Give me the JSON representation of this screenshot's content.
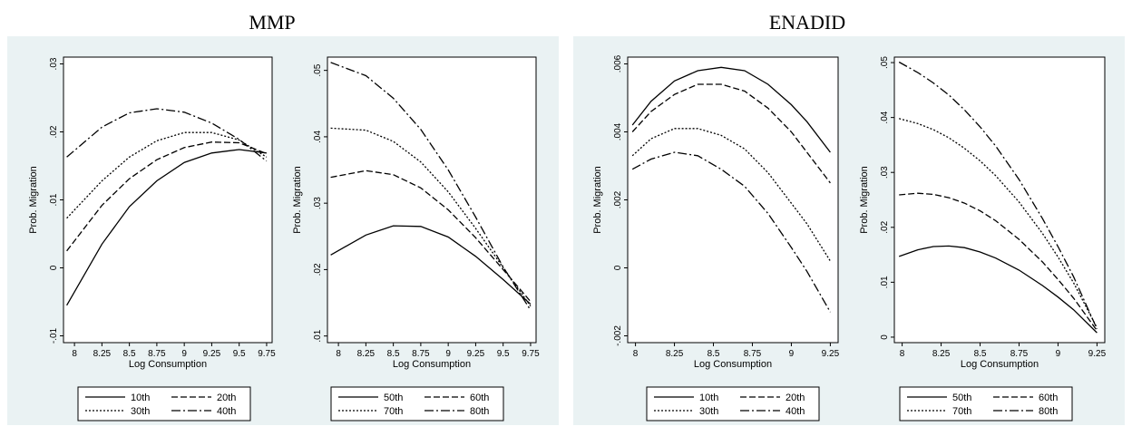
{
  "groups": [
    {
      "title": "MMP"
    },
    {
      "title": "ENADID"
    }
  ],
  "chart_data": [
    {
      "type": "line",
      "group": "MMP",
      "xlabel": "Log Consumption",
      "ylabel": "Prob. Migration",
      "xlim": [
        7.9,
        9.8
      ],
      "ylim": [
        -0.011,
        0.031
      ],
      "xticks": [
        8,
        8.25,
        8.5,
        8.75,
        9,
        9.25,
        9.5,
        9.75
      ],
      "xtick_labels": [
        "8",
        "8.25",
        "8.5",
        "8.75",
        "9",
        "9.25",
        "9.5",
        "9.75"
      ],
      "yticks": [
        -0.01,
        0,
        0.01,
        0.02,
        0.03
      ],
      "ytick_labels": [
        "-.01",
        "0",
        ".01",
        ".02",
        ".03"
      ],
      "legend_placement": "bottom",
      "series": [
        {
          "name": "10th",
          "dash": "solid",
          "x": [
            7.93,
            8.25,
            8.5,
            8.75,
            9.0,
            9.25,
            9.5,
            9.75
          ],
          "y": [
            -0.0055,
            0.0035,
            0.009,
            0.0128,
            0.0155,
            0.0169,
            0.0174,
            0.0169
          ]
        },
        {
          "name": "20th",
          "dash": "dash",
          "x": [
            7.93,
            8.25,
            8.5,
            8.75,
            9.0,
            9.25,
            9.5,
            9.75
          ],
          "y": [
            0.0025,
            0.0092,
            0.0131,
            0.0159,
            0.0177,
            0.0185,
            0.0184,
            0.0168
          ]
        },
        {
          "name": "30th",
          "dash": "dot",
          "x": [
            7.93,
            8.25,
            8.5,
            8.75,
            9.0,
            9.25,
            9.5,
            9.75
          ],
          "y": [
            0.0073,
            0.0128,
            0.0163,
            0.0187,
            0.0199,
            0.0199,
            0.0188,
            0.0163
          ]
        },
        {
          "name": "40th",
          "dash": "longdash",
          "x": [
            7.93,
            8.25,
            8.5,
            8.75,
            9.0,
            9.25,
            9.5,
            9.75
          ],
          "y": [
            0.0163,
            0.0207,
            0.0228,
            0.0234,
            0.0229,
            0.0213,
            0.0189,
            0.0157
          ]
        }
      ]
    },
    {
      "type": "line",
      "group": "MMP",
      "xlabel": "Log Consumption",
      "ylabel": "Prob. Migration",
      "xlim": [
        7.9,
        9.8
      ],
      "ylim": [
        0.009,
        0.052
      ],
      "xticks": [
        8,
        8.25,
        8.5,
        8.75,
        9,
        9.25,
        9.5,
        9.75
      ],
      "xtick_labels": [
        "8",
        "8.25",
        "8.5",
        "8.75",
        "9",
        "9.25",
        "9.5",
        "9.75"
      ],
      "yticks": [
        0.01,
        0.02,
        0.03,
        0.04,
        0.05
      ],
      "ytick_labels": [
        ".01",
        ".02",
        ".03",
        ".04",
        ".05"
      ],
      "legend_placement": "bottom",
      "series": [
        {
          "name": "50th",
          "dash": "solid",
          "x": [
            7.93,
            8.25,
            8.5,
            8.75,
            9.0,
            9.25,
            9.5,
            9.75
          ],
          "y": [
            0.0222,
            0.0252,
            0.0266,
            0.0265,
            0.0249,
            0.022,
            0.0185,
            0.0148
          ]
        },
        {
          "name": "60th",
          "dash": "dash",
          "x": [
            7.93,
            8.25,
            8.5,
            8.75,
            9.0,
            9.25,
            9.5,
            9.75
          ],
          "y": [
            0.0339,
            0.0349,
            0.0343,
            0.0323,
            0.029,
            0.0248,
            0.02,
            0.0152
          ]
        },
        {
          "name": "70th",
          "dash": "dot",
          "x": [
            7.93,
            8.25,
            8.5,
            8.75,
            9.0,
            9.25,
            9.5,
            9.75
          ],
          "y": [
            0.0413,
            0.041,
            0.0393,
            0.0362,
            0.0317,
            0.0262,
            0.0203,
            0.0145
          ]
        },
        {
          "name": "80th",
          "dash": "longdash",
          "x": [
            7.93,
            8.25,
            8.5,
            8.75,
            9.0,
            9.25,
            9.5,
            9.75
          ],
          "y": [
            0.0512,
            0.0492,
            0.0458,
            0.0411,
            0.035,
            0.0279,
            0.0204,
            0.0139
          ]
        }
      ]
    },
    {
      "type": "line",
      "group": "ENADID",
      "xlabel": "Log Consumption",
      "ylabel": "Prob. Migration",
      "xlim": [
        7.95,
        9.3
      ],
      "ylim": [
        -0.0022,
        0.0062
      ],
      "xticks": [
        8,
        8.25,
        8.5,
        8.75,
        9,
        9.25
      ],
      "xtick_labels": [
        "8",
        "8.25",
        "8.5",
        "8.75",
        "9",
        "9.25"
      ],
      "yticks": [
        -0.002,
        0,
        0.002,
        0.004,
        0.006
      ],
      "ytick_labels": [
        "-.002",
        "0",
        ".002",
        ".004",
        ".006"
      ],
      "legend_placement": "bottom",
      "series": [
        {
          "name": "10th",
          "dash": "solid",
          "x": [
            7.98,
            8.1,
            8.25,
            8.4,
            8.55,
            8.7,
            8.85,
            9.0,
            9.1,
            9.25
          ],
          "y": [
            0.0042,
            0.0049,
            0.0055,
            0.0058,
            0.0059,
            0.0058,
            0.0054,
            0.0048,
            0.0043,
            0.0034
          ]
        },
        {
          "name": "20th",
          "dash": "dash",
          "x": [
            7.98,
            8.1,
            8.25,
            8.4,
            8.55,
            8.7,
            8.85,
            9.0,
            9.1,
            9.25
          ],
          "y": [
            0.004,
            0.0046,
            0.0051,
            0.0054,
            0.0054,
            0.0052,
            0.0047,
            0.004,
            0.0034,
            0.0025
          ]
        },
        {
          "name": "30th",
          "dash": "dot",
          "x": [
            7.98,
            8.1,
            8.25,
            8.4,
            8.55,
            8.7,
            8.85,
            9.0,
            9.1,
            9.25
          ],
          "y": [
            0.0033,
            0.0038,
            0.0041,
            0.0041,
            0.0039,
            0.0035,
            0.0028,
            0.0019,
            0.0013,
            0.0002
          ]
        },
        {
          "name": "40th",
          "dash": "longdash",
          "x": [
            7.98,
            8.1,
            8.25,
            8.4,
            8.55,
            8.7,
            8.85,
            9.0,
            9.1,
            9.25
          ],
          "y": [
            0.0029,
            0.0032,
            0.0034,
            0.0033,
            0.0029,
            0.0024,
            0.0016,
            0.0006,
            -0.0001,
            -0.0013
          ]
        }
      ]
    },
    {
      "type": "line",
      "group": "ENADID",
      "xlabel": "Log Consumption",
      "ylabel": "Prob. Migration",
      "xlim": [
        7.95,
        9.3
      ],
      "ylim": [
        -0.001,
        0.051
      ],
      "xticks": [
        8,
        8.25,
        8.5,
        8.75,
        9,
        9.25
      ],
      "xtick_labels": [
        "8",
        "8.25",
        "8.5",
        "8.75",
        "9",
        "9.25"
      ],
      "yticks": [
        0,
        0.01,
        0.02,
        0.03,
        0.04,
        0.05
      ],
      "ytick_labels": [
        "0",
        ".01",
        ".02",
        ".03",
        ".04",
        ".05"
      ],
      "legend_placement": "bottom",
      "series": [
        {
          "name": "50th",
          "dash": "solid",
          "x": [
            7.98,
            8.1,
            8.2,
            8.3,
            8.4,
            8.5,
            8.6,
            8.75,
            8.9,
            9.0,
            9.1,
            9.25
          ],
          "y": [
            0.0147,
            0.0159,
            0.0165,
            0.0166,
            0.0163,
            0.0155,
            0.0144,
            0.0122,
            0.0094,
            0.0073,
            0.005,
            0.0008
          ]
        },
        {
          "name": "60th",
          "dash": "dash",
          "x": [
            7.98,
            8.1,
            8.2,
            8.3,
            8.4,
            8.5,
            8.6,
            8.75,
            8.9,
            9.0,
            9.1,
            9.25
          ],
          "y": [
            0.0259,
            0.0262,
            0.026,
            0.0254,
            0.0244,
            0.023,
            0.0212,
            0.0178,
            0.0137,
            0.0105,
            0.0071,
            0.0012
          ]
        },
        {
          "name": "70th",
          "dash": "dot",
          "x": [
            7.98,
            8.1,
            8.2,
            8.3,
            8.4,
            8.5,
            8.6,
            8.75,
            8.9,
            9.0,
            9.1,
            9.25
          ],
          "y": [
            0.0398,
            0.0389,
            0.0378,
            0.0363,
            0.0344,
            0.0321,
            0.0294,
            0.0246,
            0.0189,
            0.0146,
            0.0099,
            0.0017
          ]
        },
        {
          "name": "80th",
          "dash": "longdash",
          "x": [
            7.98,
            8.1,
            8.2,
            8.3,
            8.4,
            8.5,
            8.6,
            8.75,
            8.9,
            9.0,
            9.1,
            9.25
          ],
          "y": [
            0.0501,
            0.0482,
            0.0463,
            0.0441,
            0.0414,
            0.0383,
            0.0348,
            0.0287,
            0.0216,
            0.0165,
            0.011,
            0.0015
          ]
        }
      ]
    }
  ]
}
